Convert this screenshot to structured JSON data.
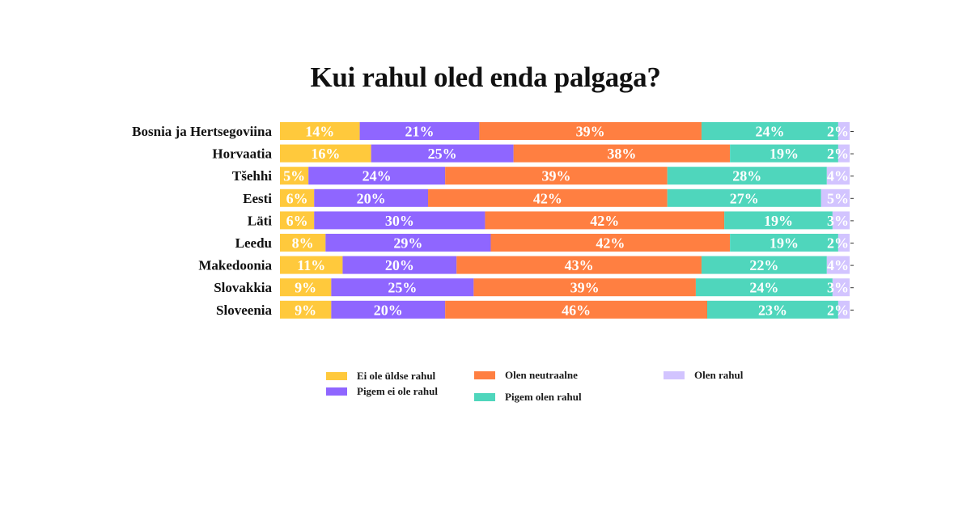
{
  "chart_data": {
    "type": "bar",
    "orientation": "horizontal",
    "stacked": true,
    "title": "Kui rahul oled enda palgaga?",
    "xlabel": "",
    "ylabel": "",
    "xlim": [
      0,
      100
    ],
    "grid": false,
    "legend_placement": "bottom",
    "categories": [
      "Bosnia ja Hertsegoviina",
      "Horvaatia",
      "Tšehhi",
      "Eesti",
      "Läti",
      "Leedu",
      "Makedoonia",
      "Slovakkia",
      "Sloveenia"
    ],
    "series": [
      {
        "name": "Ei ole üldse rahul",
        "color": "#FFC93C",
        "values": [
          14,
          16,
          5,
          6,
          6,
          8,
          11,
          9,
          9
        ]
      },
      {
        "name": "Pigem ei ole rahul",
        "color": "#8F66FF",
        "values": [
          21,
          25,
          24,
          20,
          30,
          29,
          20,
          25,
          20
        ]
      },
      {
        "name": "Olen neutraalne",
        "color": "#FF7F41",
        "values": [
          39,
          38,
          39,
          42,
          42,
          42,
          43,
          39,
          46
        ]
      },
      {
        "name": "Pigem olen rahul",
        "color": "#4FD6BC",
        "values": [
          24,
          19,
          28,
          27,
          19,
          19,
          22,
          24,
          23
        ]
      },
      {
        "name": "Olen rahul",
        "color": "#D2C4FF",
        "values": [
          2,
          2,
          4,
          5,
          3,
          2,
          4,
          3,
          2
        ]
      }
    ],
    "value_suffix": "%"
  },
  "legend": {
    "items": [
      {
        "label": "Ei ole üldse rahul",
        "color": "#FFC93C"
      },
      {
        "label": "Pigem ei ole rahul",
        "color": "#8F66FF"
      },
      {
        "label": "Olen neutraalne",
        "color": "#FF7F41"
      },
      {
        "label": "Pigem olen rahul",
        "color": "#4FD6BC"
      },
      {
        "label": "Olen rahul",
        "color": "#D2C4FF"
      }
    ]
  }
}
